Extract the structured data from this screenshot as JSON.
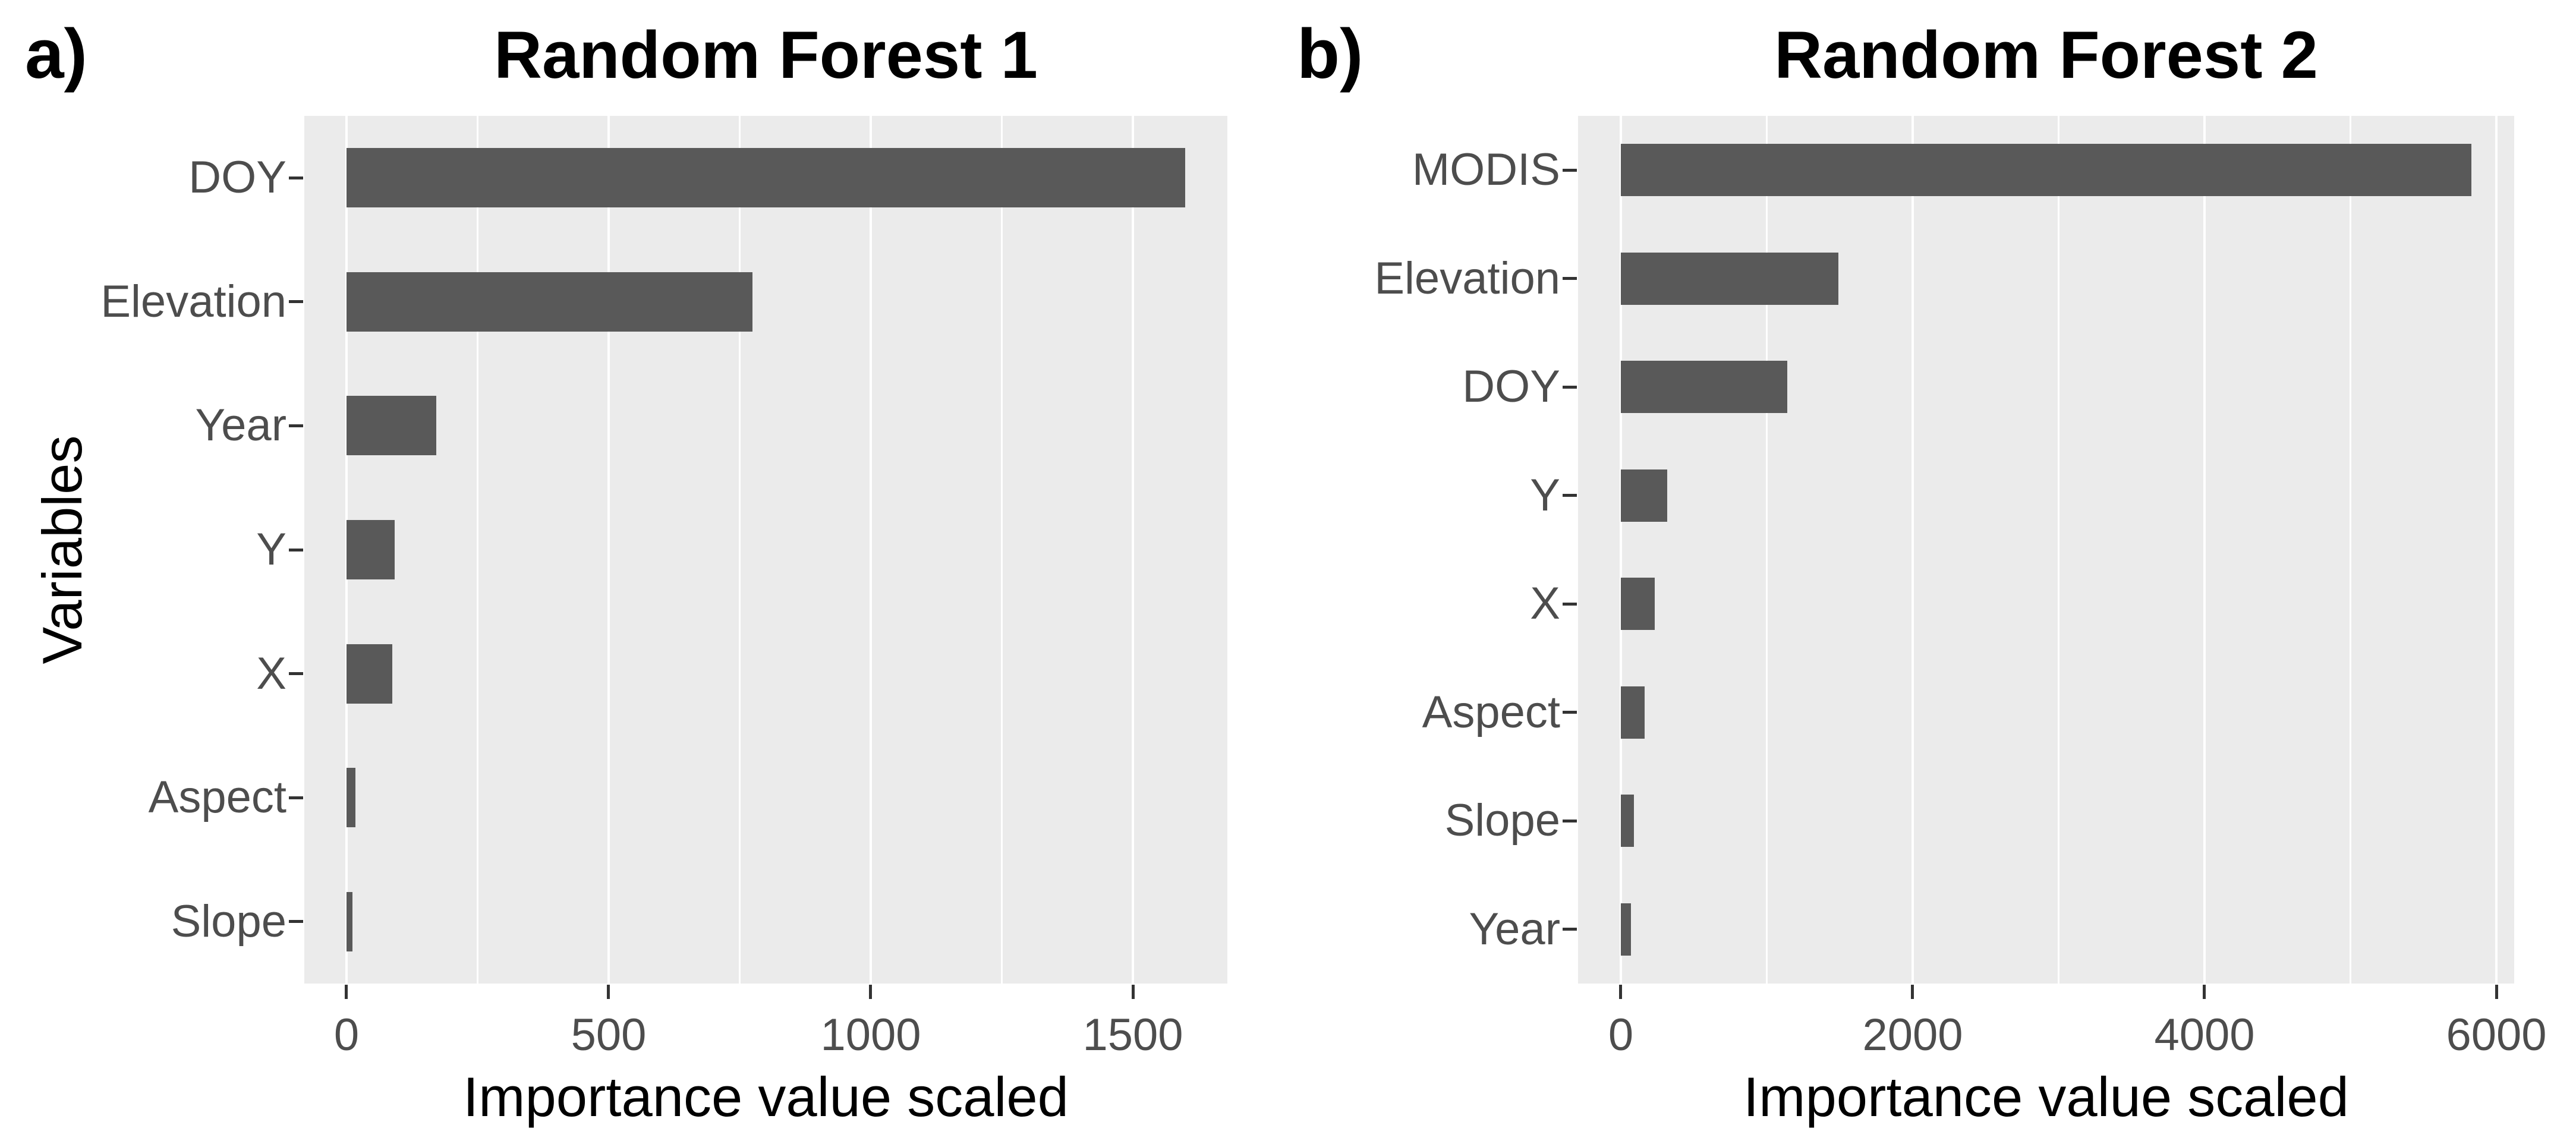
{
  "figure": {
    "background": "#FFFFFF",
    "description": "Two-panel horizontal bar chart of random forest variable importance"
  },
  "chart_data": [
    {
      "type": "bar",
      "orientation": "horizontal",
      "panel_tag": "a)",
      "title": "Random Forest 1",
      "xlabel": "Importance value scaled",
      "ylabel": "Variables",
      "categories": [
        "DOY",
        "Elevation",
        "Year",
        "Y",
        "X",
        "Aspect",
        "Slope"
      ],
      "values": [
        1600,
        775,
        172,
        92,
        88,
        18,
        12
      ],
      "xticks": [
        0,
        500,
        1000,
        1500
      ],
      "xtick_labels": [
        "0",
        "500",
        "1000",
        "1500"
      ],
      "minor_gridlines": [
        250,
        750,
        1250
      ],
      "xlim": [
        -80,
        1680
      ],
      "bar_width_fraction": 0.48,
      "grid": true,
      "legend": false,
      "colors": {
        "bar": "#595959",
        "panel_background": "#EBEBEB",
        "gridline": "#FFFFFF",
        "tick_label": "#4D4D4D",
        "tick_mark": "#333333",
        "title": "#000000",
        "axis_title": "#000000"
      }
    },
    {
      "type": "bar",
      "orientation": "horizontal",
      "panel_tag": "b)",
      "title": "Random Forest 2",
      "xlabel": "Importance value scaled",
      "ylabel": "",
      "categories": [
        "MODIS",
        "Elevation",
        "DOY",
        "Y",
        "X",
        "Aspect",
        "Slope",
        "Year"
      ],
      "values": [
        5830,
        1490,
        1140,
        320,
        235,
        165,
        90,
        70
      ],
      "xticks": [
        0,
        2000,
        4000,
        6000
      ],
      "xtick_labels": [
        "0",
        "2000",
        "4000",
        "6000"
      ],
      "minor_gridlines": [
        1000,
        3000,
        5000
      ],
      "xlim": [
        -292,
        6122
      ],
      "bar_width_fraction": 0.48,
      "grid": true,
      "legend": false,
      "colors": {
        "bar": "#595959",
        "panel_background": "#EBEBEB",
        "gridline": "#FFFFFF",
        "tick_label": "#4D4D4D",
        "tick_mark": "#333333",
        "title": "#000000",
        "axis_title": "#000000"
      }
    }
  ]
}
